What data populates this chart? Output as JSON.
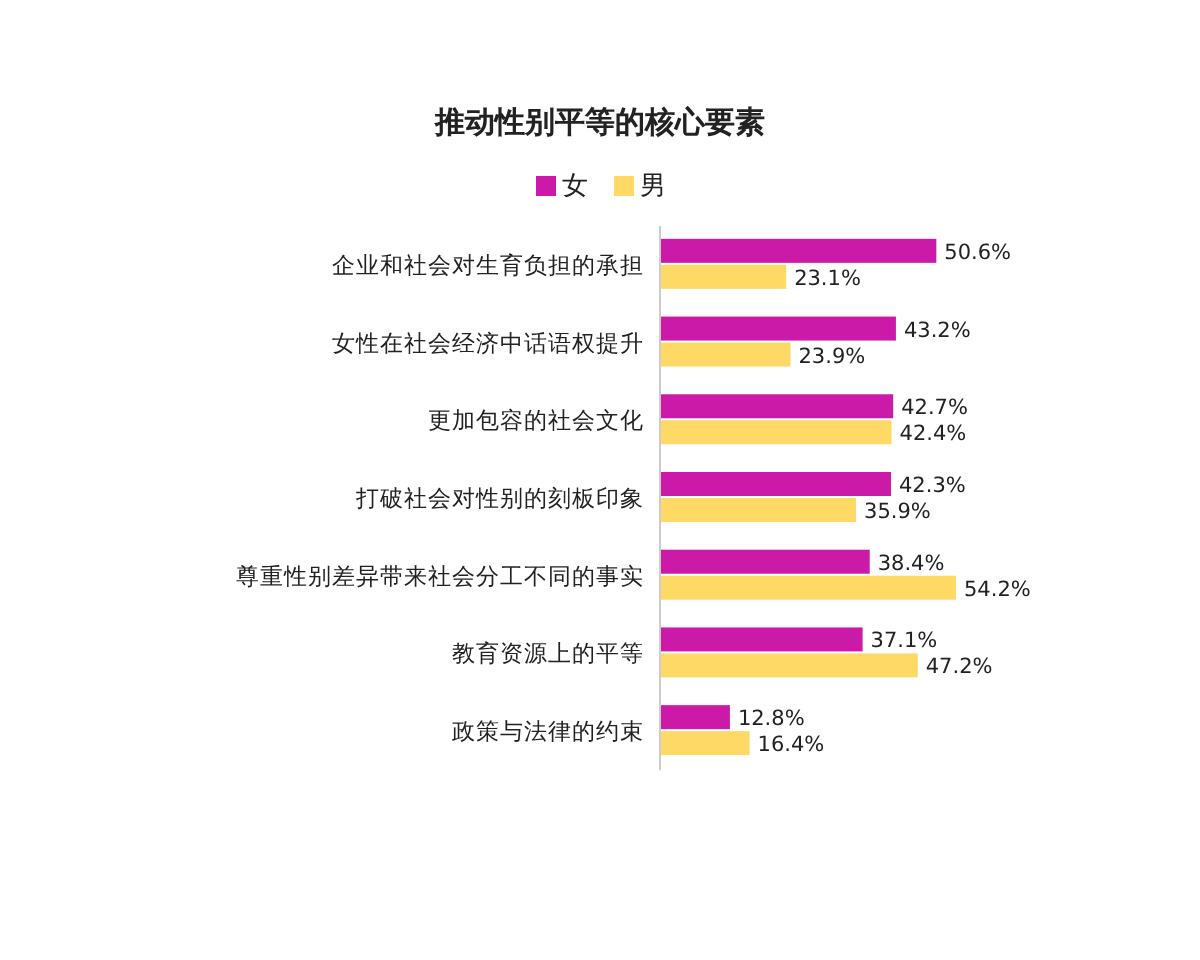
{
  "chart_data": {
    "type": "bar",
    "orientation": "horizontal",
    "title": "推动性别平等的核心要素",
    "categories": [
      "企业和社会对生育负担的承担",
      "女性在社会经济中话语权提升",
      "更加包容的社会文化",
      "打破社会对性别的刻板印象",
      "尊重性别差异带来社会分工不同的事实",
      "教育资源上的平等",
      "政策与法律的约束"
    ],
    "series": [
      {
        "name": "女",
        "color": "#cc1aa8",
        "values": [
          50.6,
          43.2,
          42.7,
          42.3,
          38.4,
          37.1,
          12.8
        ],
        "value_labels": [
          "50.6%",
          "43.2%",
          "42.7%",
          "42.3%",
          "38.4%",
          "37.1%",
          "12.8%"
        ]
      },
      {
        "name": "男",
        "color": "#ffd966",
        "values": [
          23.1,
          23.9,
          42.4,
          35.9,
          54.2,
          47.2,
          16.4
        ],
        "value_labels": [
          "23.1%",
          "23.9%",
          "42.4%",
          "35.9%",
          "54.2%",
          "47.2%",
          "16.4%"
        ]
      }
    ],
    "legend": "top",
    "tick_labels": "y"
  }
}
